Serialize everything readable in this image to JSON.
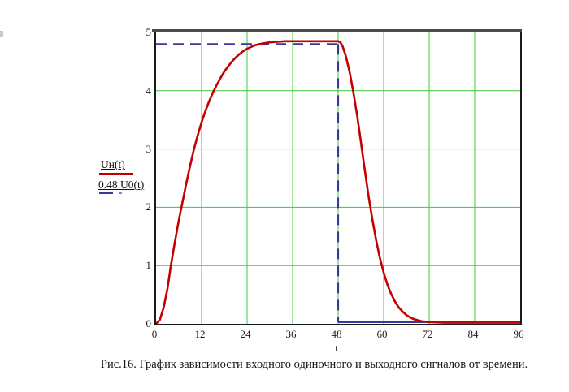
{
  "page": {
    "caption": "Рис.16. График зависимости входного одиночного и выходного сигналов от времени."
  },
  "chart_data": {
    "type": "line",
    "title": "",
    "xlabel": "t",
    "ylabel": "",
    "x_range": [
      0,
      96
    ],
    "y_range": [
      0,
      5
    ],
    "x_ticks": [
      0,
      12,
      24,
      36,
      48,
      60,
      72,
      84,
      96
    ],
    "y_ticks": [
      0,
      1,
      2,
      3,
      4,
      5
    ],
    "grid": true,
    "grid_color": "#35cc35",
    "frame_color": "#1a1a1a",
    "legend_position": "left-outside",
    "input_level": 4.8,
    "output_plateau": 4.85,
    "pulse_duration": 48,
    "series": [
      {
        "name": "0.48 U0(t)",
        "color": "#3838a2",
        "width": 2.2,
        "style": "dashed",
        "segments": [
          {
            "dash": true,
            "points": [
              [
                0,
                4.8
              ],
              [
                48,
                4.8
              ]
            ]
          },
          {
            "dash": true,
            "points": [
              [
                48,
                4.8
              ],
              [
                48,
                0.03
              ]
            ]
          },
          {
            "dash": false,
            "points": [
              [
                48,
                0.03
              ],
              [
                96,
                0.03
              ]
            ]
          }
        ]
      },
      {
        "name": "Uн(t)",
        "color": "#c40000",
        "width": 2.6,
        "style": "solid",
        "segments": [
          {
            "dash": false,
            "points": [
              [
                0,
                0
              ],
              [
                1,
                0.07
              ],
              [
                2,
                0.28
              ],
              [
                3,
                0.6
              ],
              [
                3.9,
                1.0
              ],
              [
                5,
                1.42
              ],
              [
                6,
                1.78
              ],
              [
                7,
                2.1
              ],
              [
                7.5,
                2.26
              ],
              [
                8,
                2.42
              ],
              [
                9,
                2.72
              ],
              [
                10,
                3.0
              ],
              [
                11,
                3.24
              ],
              [
                12,
                3.46
              ],
              [
                13,
                3.65
              ],
              [
                14,
                3.82
              ],
              [
                15,
                3.97
              ],
              [
                16,
                4.1
              ],
              [
                17,
                4.22
              ],
              [
                18,
                4.33
              ],
              [
                19,
                4.42
              ],
              [
                20,
                4.5
              ],
              [
                21,
                4.57
              ],
              [
                22,
                4.63
              ],
              [
                23,
                4.68
              ],
              [
                24,
                4.72
              ],
              [
                25,
                4.75
              ],
              [
                26,
                4.78
              ],
              [
                28,
                4.81
              ],
              [
                30,
                4.83
              ],
              [
                32,
                4.84
              ],
              [
                34,
                4.85
              ],
              [
                36,
                4.85
              ],
              [
                40,
                4.85
              ],
              [
                44,
                4.85
              ],
              [
                48,
                4.85
              ],
              [
                48.6,
                4.83
              ],
              [
                49.2,
                4.76
              ],
              [
                50,
                4.6
              ],
              [
                51,
                4.33
              ],
              [
                52,
                3.98
              ],
              [
                53,
                3.58
              ],
              [
                54,
                3.12
              ],
              [
                55,
                2.65
              ],
              [
                56,
                2.2
              ],
              [
                57,
                1.8
              ],
              [
                58,
                1.44
              ],
              [
                59,
                1.13
              ],
              [
                60,
                0.88
              ],
              [
                61,
                0.67
              ],
              [
                62,
                0.51
              ],
              [
                63,
                0.38
              ],
              [
                64,
                0.28
              ],
              [
                65,
                0.21
              ],
              [
                66,
                0.15
              ],
              [
                67,
                0.11
              ],
              [
                68,
                0.08
              ],
              [
                70,
                0.045
              ],
              [
                72,
                0.03
              ],
              [
                76,
                0.02
              ],
              [
                80,
                0.02
              ],
              [
                84,
                0.02
              ],
              [
                90,
                0.02
              ],
              [
                96,
                0.02
              ]
            ]
          }
        ]
      }
    ]
  }
}
